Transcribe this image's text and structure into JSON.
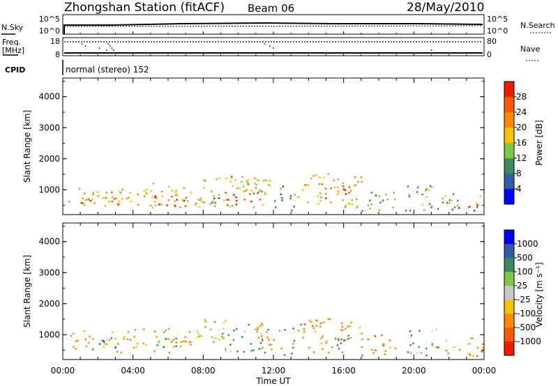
{
  "header": {
    "title": "Zhongshan Station (fitACF)",
    "beam": "Beam 06",
    "date": "28/May/2010"
  },
  "summary_panels": {
    "nsky": {
      "label": "N.Sky",
      "ticks": [
        "10^5",
        "10^0"
      ]
    },
    "nsearch": {
      "label": "N.Search",
      "ticks": [
        "10^5",
        "10^0"
      ]
    },
    "freq": {
      "label_line1": "Freq.",
      "label_line2": "[MHz]",
      "ticks": [
        "18",
        "8"
      ]
    },
    "nave": {
      "label": "Nave",
      "ticks": [
        "80",
        "0"
      ]
    },
    "cpid": {
      "label": "CPID",
      "mode_text": "normal (stereo) 152"
    }
  },
  "x_axis": {
    "label": "Time UT",
    "ticks": [
      "00:00",
      "04:00",
      "08:00",
      "12:00",
      "16:00",
      "20:00",
      "00:00"
    ]
  },
  "colors": {
    "power_scale": [
      "#0000ff",
      "#2f5da8",
      "#3a8c5c",
      "#7ec843",
      "#f5c400",
      "#ff8a00",
      "#ff5a00",
      "#ee1c00"
    ],
    "velocity_scale": [
      "#ee1c00",
      "#ff5a00",
      "#ff8a00",
      "#f5c400",
      "#c8c8c8",
      "#7ec843",
      "#3a8c5c",
      "#2f5da8",
      "#0000ff"
    ]
  },
  "chart_data": [
    {
      "type": "heatmap",
      "name": "power",
      "xlabel": "",
      "ylabel": "Slant Range [km]",
      "y_ticks": [
        "1000",
        "2000",
        "3000",
        "4000"
      ],
      "ylim": [
        200,
        4600
      ],
      "xlim_hours": [
        0,
        24
      ],
      "colorbar": {
        "label": "Power [dB]",
        "ticks": [
          "4",
          "8",
          "12",
          "16",
          "20",
          "24",
          "28"
        ],
        "range": [
          0,
          32
        ]
      },
      "scatter_regions": [
        {
          "t": [
            0.3,
            3.8
          ],
          "r": [
            400,
            1100
          ],
          "level": 18
        },
        {
          "t": [
            1.0,
            3.2
          ],
          "r": [
            400,
            900
          ],
          "level": 26
        },
        {
          "t": [
            3.8,
            7.5
          ],
          "r": [
            400,
            1200
          ],
          "level": 18
        },
        {
          "t": [
            4.5,
            7.0
          ],
          "r": [
            450,
            800
          ],
          "level": 27
        },
        {
          "t": [
            7.5,
            11.8
          ],
          "r": [
            400,
            1500
          ],
          "level": 16
        },
        {
          "t": [
            8.5,
            11.3
          ],
          "r": [
            450,
            900
          ],
          "level": 28
        },
        {
          "t": [
            9.5,
            11.5
          ],
          "r": [
            800,
            1400
          ],
          "level": 20
        },
        {
          "t": [
            12.0,
            13.2
          ],
          "r": [
            300,
            1200
          ],
          "level": 10
        },
        {
          "t": [
            13.3,
            17.0
          ],
          "r": [
            400,
            1500
          ],
          "level": 18
        },
        {
          "t": [
            14.5,
            16.5
          ],
          "r": [
            700,
            1200
          ],
          "level": 27
        },
        {
          "t": [
            17.0,
            19.0
          ],
          "r": [
            300,
            1000
          ],
          "level": 12
        },
        {
          "t": [
            19.5,
            21.5
          ],
          "r": [
            300,
            1200
          ],
          "level": 14
        },
        {
          "t": [
            21.5,
            23.9
          ],
          "r": [
            300,
            900
          ],
          "level": 12
        },
        {
          "t": [
            22.5,
            23.9
          ],
          "r": [
            250,
            500
          ],
          "level": 27
        }
      ]
    },
    {
      "type": "heatmap",
      "name": "velocity",
      "xlabel": "Time UT",
      "ylabel": "Slant Range [km]",
      "y_ticks": [
        "1000",
        "2000",
        "3000",
        "4000"
      ],
      "ylim": [
        200,
        4600
      ],
      "xlim_hours": [
        0,
        24
      ],
      "colorbar": {
        "label": "Velocity [m s⁻¹]",
        "ticks": [
          "1000",
          "500",
          "100",
          "25",
          "-25",
          "-100",
          "-500",
          "-1000"
        ]
      },
      "scatter_regions": [
        {
          "t": [
            0.3,
            3.8
          ],
          "r": [
            400,
            1100
          ],
          "level": -200
        },
        {
          "t": [
            1.5,
            3.0
          ],
          "r": [
            500,
            900
          ],
          "level": 600
        },
        {
          "t": [
            3.8,
            7.5
          ],
          "r": [
            400,
            1200
          ],
          "level": -250
        },
        {
          "t": [
            5.0,
            6.5
          ],
          "r": [
            500,
            900
          ],
          "level": 300
        },
        {
          "t": [
            7.5,
            9.5
          ],
          "r": [
            500,
            1500
          ],
          "level": 0
        },
        {
          "t": [
            9.0,
            11.8
          ],
          "r": [
            400,
            1400
          ],
          "level": 120
        },
        {
          "t": [
            11.0,
            12.5
          ],
          "r": [
            500,
            1400
          ],
          "level": -250
        },
        {
          "t": [
            12.5,
            13.2
          ],
          "r": [
            300,
            1200
          ],
          "level": 200
        },
        {
          "t": [
            13.3,
            17.0
          ],
          "r": [
            400,
            1500
          ],
          "level": -300
        },
        {
          "t": [
            15.0,
            16.5
          ],
          "r": [
            500,
            1000
          ],
          "level": 200
        },
        {
          "t": [
            17.0,
            19.0
          ],
          "r": [
            300,
            1000
          ],
          "level": -400
        },
        {
          "t": [
            19.5,
            21.5
          ],
          "r": [
            300,
            1200
          ],
          "level": 150
        },
        {
          "t": [
            21.5,
            23.9
          ],
          "r": [
            300,
            900
          ],
          "level": -150
        },
        {
          "t": [
            22.8,
            23.9
          ],
          "r": [
            250,
            500
          ],
          "level": -800
        }
      ]
    }
  ]
}
